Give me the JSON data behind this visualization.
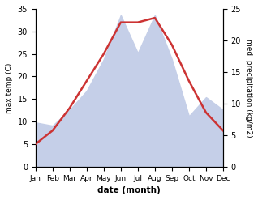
{
  "months": [
    "Jan",
    "Feb",
    "Mar",
    "Apr",
    "May",
    "Jun",
    "Jul",
    "Aug",
    "Sep",
    "Oct",
    "Nov",
    "Dec"
  ],
  "temp": [
    5,
    8,
    13,
    19,
    25,
    32,
    32,
    33,
    27,
    19,
    12,
    8
  ],
  "precip": [
    7,
    6.5,
    9,
    12,
    17,
    24,
    18,
    24,
    17,
    8,
    11,
    9
  ],
  "temp_color": "#cc3333",
  "precip_fill_color": "#c5cfe8",
  "bg_color": "#ffffff",
  "ylabel_left": "max temp (C)",
  "ylabel_right": "med. precipitation (kg/m2)",
  "xlabel": "date (month)",
  "ylim_left": [
    0,
    35
  ],
  "ylim_right": [
    0,
    25
  ],
  "yticks_left": [
    0,
    5,
    10,
    15,
    20,
    25,
    30,
    35
  ],
  "yticks_right": [
    0,
    5,
    10,
    15,
    20,
    25
  ]
}
